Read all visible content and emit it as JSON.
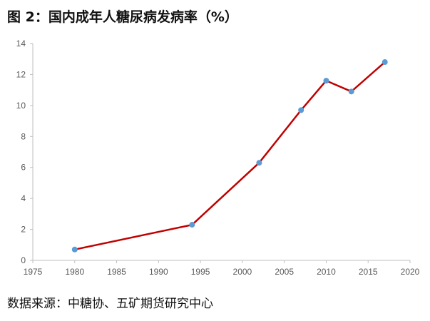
{
  "figure_title": "图 2：国内成年人糖尿病发病率（%）",
  "source_note": "数据来源：中糖协、五矿期货研究中心",
  "chart_data": {
    "type": "line",
    "title": "图 2：国内成年人糖尿病发病率（%）",
    "xlabel": "",
    "ylabel": "",
    "xlim": [
      1975,
      2020
    ],
    "ylim": [
      0,
      14
    ],
    "xticks": [
      1975,
      1980,
      1985,
      1990,
      1995,
      2000,
      2005,
      2010,
      2015,
      2020
    ],
    "yticks": [
      0,
      2,
      4,
      6,
      8,
      10,
      12,
      14
    ],
    "grid": false,
    "legend": "none",
    "series": [
      {
        "x": [
          1980,
          1994,
          2002,
          2007,
          2010,
          2013,
          2017
        ],
        "values": [
          0.7,
          2.3,
          6.3,
          9.7,
          11.6,
          10.9,
          12.8
        ],
        "line_color": "#c00000",
        "marker_color": "#5b9bd5"
      }
    ]
  }
}
